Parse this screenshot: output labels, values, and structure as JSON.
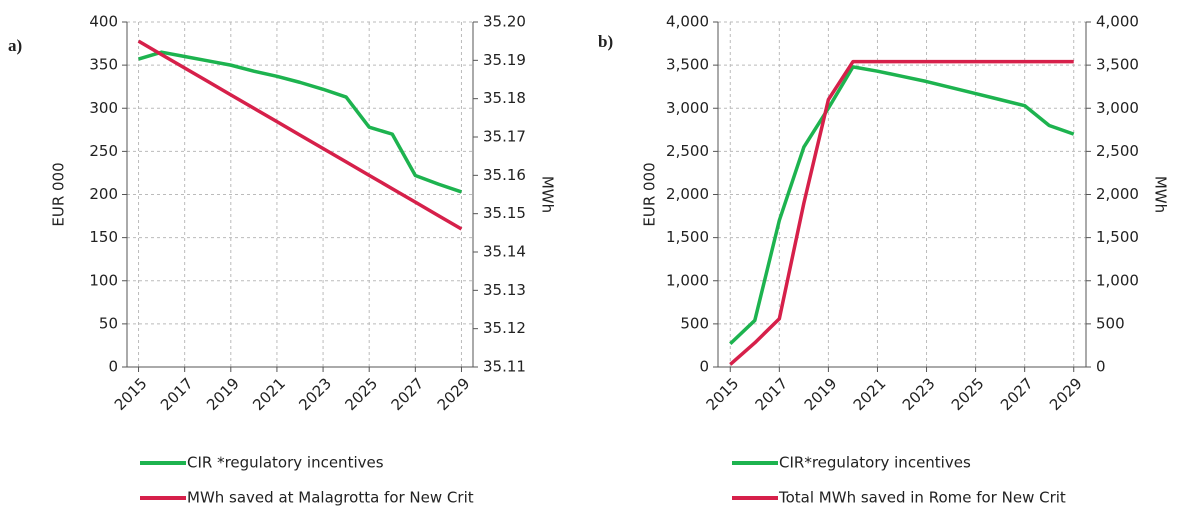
{
  "chart_data": [
    {
      "type": "line",
      "label": "a)",
      "ylabel": "EUR 000",
      "y2label": "MWh",
      "grid": true,
      "legend": "bottom",
      "x": [
        2015,
        2016,
        2017,
        2018,
        2019,
        2020,
        2021,
        2022,
        2023,
        2024,
        2025,
        2026,
        2027,
        2028,
        2029
      ],
      "xlim": [
        2014.5,
        2029.5
      ],
      "xticks": [
        2015,
        2017,
        2019,
        2021,
        2023,
        2025,
        2027,
        2029
      ],
      "ylim": [
        0,
        400
      ],
      "yticks": [
        0,
        50,
        100,
        150,
        200,
        250,
        300,
        350,
        400
      ],
      "y2lim": [
        35.11,
        35.2
      ],
      "y2ticks": [
        35.11,
        35.12,
        35.13,
        35.14,
        35.15,
        35.16,
        35.17,
        35.18,
        35.19,
        {
          "value": 35.2,
          "label": "35.20"
        }
      ],
      "series": [
        {
          "name": "CIR *regulatory incentives",
          "color": "#1db34f",
          "values": [
            357,
            365,
            360,
            355,
            350,
            343,
            337,
            330,
            322,
            313,
            278,
            270,
            222,
            212,
            203
          ]
        },
        {
          "name": "MWh saved at Malagrotta for New Crit",
          "color": "#d6204a",
          "axis": "y2",
          "values": [
            35.195,
            35.1915,
            35.188,
            35.1845,
            35.181,
            35.1775,
            35.174,
            35.1705,
            35.167,
            35.1635,
            35.16,
            35.1565,
            35.153,
            35.1495,
            35.146
          ]
        }
      ]
    },
    {
      "type": "line",
      "label": "b)",
      "ylabel": "EUR 000",
      "y2label": "MWh",
      "grid": true,
      "legend": "bottom",
      "x": [
        2015,
        2016,
        2017,
        2018,
        2019,
        2020,
        2021,
        2022,
        2023,
        2024,
        2025,
        2026,
        2027,
        2028,
        2029
      ],
      "xlim": [
        2014.5,
        2029.5
      ],
      "xticks": [
        2015,
        2017,
        2019,
        2021,
        2023,
        2025,
        2027,
        2029
      ],
      "ylim": [
        0,
        4000
      ],
      "yticks": [
        0,
        500,
        {
          "value": 1000,
          "label": "1,000"
        },
        {
          "value": 1500,
          "label": "1,500"
        },
        {
          "value": 2000,
          "label": "2,000"
        },
        {
          "value": 2500,
          "label": "2,500"
        },
        {
          "value": 3000,
          "label": "3,000"
        },
        {
          "value": 3500,
          "label": "3,500"
        },
        {
          "value": 4000,
          "label": "4,000"
        }
      ],
      "y2lim": [
        0,
        4000
      ],
      "y2ticks": [
        0,
        500,
        {
          "value": 1000,
          "label": "1,000"
        },
        {
          "value": 1500,
          "label": "1,500"
        },
        {
          "value": 2000,
          "label": "2,000"
        },
        {
          "value": 2500,
          "label": "2,500"
        },
        {
          "value": 3000,
          "label": "3,000"
        },
        {
          "value": 3500,
          "label": "3,500"
        },
        {
          "value": 4000,
          "label": "4,000"
        }
      ],
      "series": [
        {
          "name": "CIR*regulatory incentives",
          "color": "#1db34f",
          "values": [
            270,
            540,
            1700,
            2550,
            3000,
            3480,
            3430,
            3370,
            3310,
            3240,
            3170,
            3100,
            3030,
            2800,
            2700
          ]
        },
        {
          "name": "Total MWh saved in Rome for New Crit",
          "color": "#d6204a",
          "axis": "y2",
          "values": [
            30,
            280,
            560,
            1900,
            3100,
            3540,
            3540,
            3540,
            3540,
            3540,
            3540,
            3540,
            3540,
            3540,
            3540
          ]
        }
      ]
    }
  ]
}
